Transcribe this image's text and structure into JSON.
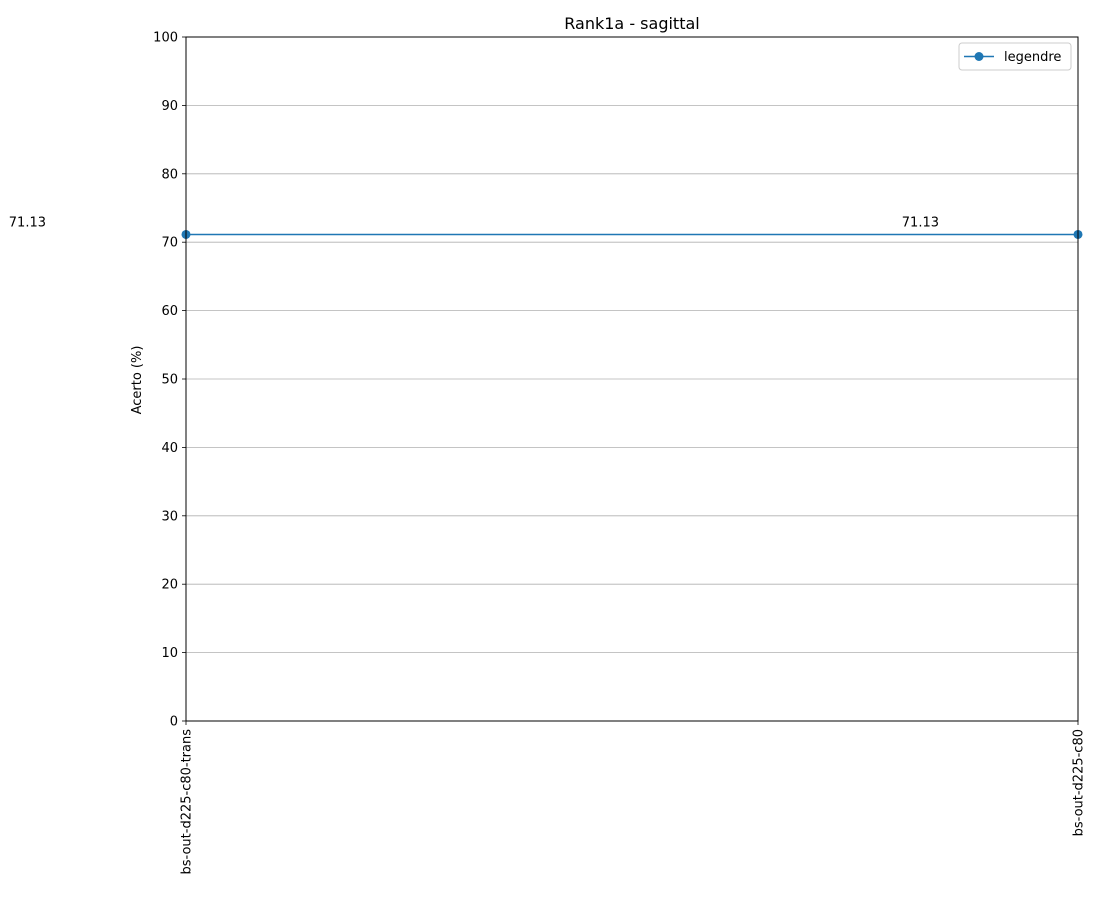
{
  "chart_data": {
    "type": "line",
    "title": "Rank1a - sagittal",
    "ylabel": "Acerto (%)",
    "xlabel": "",
    "categories": [
      "bs-out-d225-c80-trans",
      "bs-out-d225-c80"
    ],
    "series": [
      {
        "name": "legendre",
        "values": [
          71.13,
          71.13
        ],
        "color": "#1f77b4"
      }
    ],
    "data_labels": [
      "71.13",
      "71.13"
    ],
    "ylim": [
      0,
      100
    ],
    "yticks": [
      0,
      10,
      20,
      30,
      40,
      50,
      60,
      70,
      80,
      90,
      100
    ],
    "grid": "horizontal",
    "legend_position": "top-right",
    "marker": "circle"
  }
}
